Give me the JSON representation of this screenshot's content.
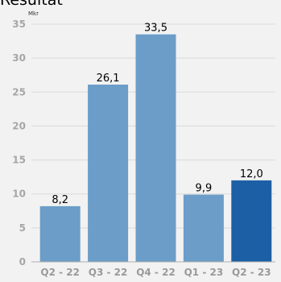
{
  "chart_data": {
    "type": "bar",
    "title": "Resultat",
    "unit": "Mkr",
    "categories": [
      "Q2 - 22",
      "Q3 - 22",
      "Q4 - 22",
      "Q1 - 23",
      "Q2 - 23"
    ],
    "values": [
      8.2,
      26.1,
      33.5,
      9.9,
      12.0
    ],
    "value_labels": [
      "8,2",
      "26,1",
      "33,5",
      "9,9",
      "12,0"
    ],
    "ylim": [
      0,
      35
    ],
    "yticks": [
      0,
      5,
      10,
      15,
      20,
      25,
      30,
      35
    ],
    "grid": true,
    "xlabel": "",
    "ylabel": "",
    "colors": {
      "bar": "#6b9dc8",
      "highlight_bar": "#1d5fa5",
      "grid": "#d9d9d9",
      "axis": "#b0b0b0",
      "background": "#f2f2f2"
    },
    "highlight_index": 4
  }
}
